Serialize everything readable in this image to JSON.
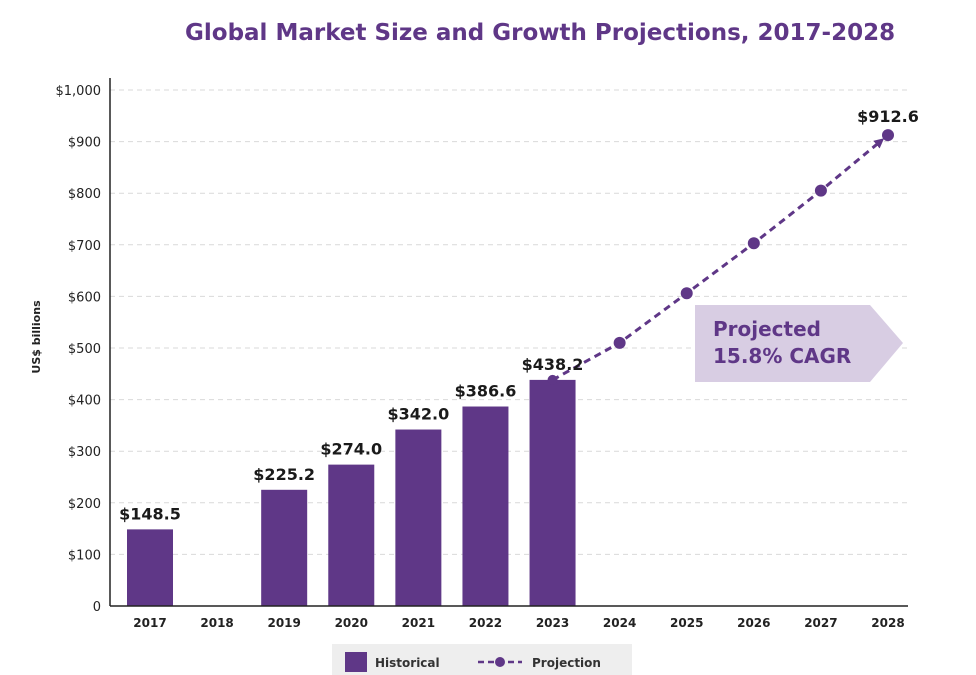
{
  "title": "Global Market Size and Growth Projections, 2017-2028",
  "colors": {
    "title": "#5f3787",
    "bar": "#5f3787",
    "projection": "#5f3787",
    "grid": "#d9d9d9",
    "callout_fill": "#d8cde3",
    "callout_text": "#5f3787",
    "legend_bg": "#eeeeee"
  },
  "callout": {
    "line1": "Projected",
    "line2": "15.8% CAGR"
  },
  "legend": {
    "historical": "Historical",
    "projection": "Projection"
  },
  "chart_data": {
    "type": "bar",
    "title": "Global Market Size and Growth Projections, 2017-2028",
    "ylabel": "US$ billions",
    "xlabel": "",
    "ylim": [
      0,
      1000
    ],
    "yticks": [
      0,
      100,
      200,
      300,
      400,
      500,
      600,
      700,
      800,
      900,
      1000
    ],
    "ytick_labels": [
      "0",
      "$100",
      "$200",
      "$300",
      "$400",
      "$500",
      "$600",
      "$700",
      "$800",
      "$900",
      "$1,000"
    ],
    "categories": [
      "2017",
      "2018",
      "2019",
      "2020",
      "2021",
      "2022",
      "2023",
      "2024",
      "2025",
      "2026",
      "2027",
      "2028"
    ],
    "grid": true,
    "legend_position": "bottom",
    "series": [
      {
        "name": "Historical",
        "type": "bar",
        "x": [
          "2017",
          "2019",
          "2020",
          "2021",
          "2022",
          "2023"
        ],
        "values": [
          148.5,
          225.2,
          274.0,
          342.0,
          386.6,
          438.2
        ],
        "labels": [
          "$148.5",
          "$225.2",
          "$274.0",
          "$342.0",
          "$386.6",
          "$438.2"
        ]
      },
      {
        "name": "Projection",
        "type": "line",
        "style": "dashed",
        "x": [
          "2023",
          "2024",
          "2025",
          "2026",
          "2027",
          "2028"
        ],
        "values": [
          438.2,
          510,
          606,
          703,
          805,
          912.6
        ],
        "end_label": "$912.6"
      }
    ]
  }
}
